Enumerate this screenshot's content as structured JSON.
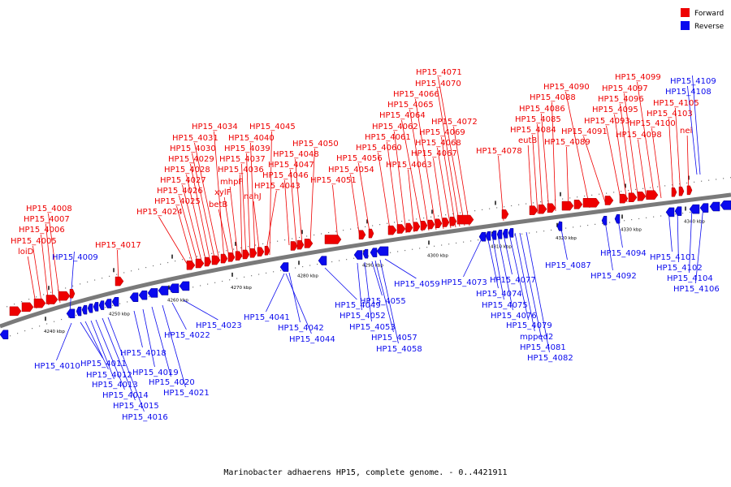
{
  "colors": {
    "forward": "#ee0000",
    "reverse": "#0a0aee",
    "backbone": "#888888",
    "text": "#000000"
  },
  "legend": [
    {
      "name": "Forward",
      "color": "#ee0000"
    },
    {
      "name": "Reverse",
      "color": "#0a0aee"
    }
  ],
  "caption": "Marinobacter adhaerens HP15, complete genome. - 0..4421911",
  "scale": {
    "ticks": [
      "4240 kbp",
      "4250 kbp",
      "4260 kbp",
      "4270 kbp",
      "4280 kbp",
      "4290 kbp",
      "4300 kbp",
      "4310 kbp",
      "4320 kbp",
      "4330 kbp",
      "4340 kbp"
    ]
  },
  "forward_labels": [
    "loiD",
    "HP15_4005",
    "HP15_4006",
    "HP15_4007",
    "HP15_4008",
    "HP15_4017",
    "HP15_4024",
    "HP15_4025",
    "HP15_4026",
    "HP15_4027",
    "HP15_4028",
    "HP15_4029",
    "HP15_4030",
    "HP15_4031",
    "HP15_4034",
    "betB",
    "xylF",
    "mhpF",
    "HP15_4036",
    "HP15_4037",
    "HP15_4039",
    "HP15_4040",
    "nahJ",
    "HP15_4043",
    "HP15_4045",
    "HP15_4046",
    "HP15_4047",
    "HP15_4048",
    "HP15_4050",
    "HP15_4051",
    "HP15_4054",
    "HP15_4056",
    "HP15_4060",
    "HP15_4061",
    "HP15_4062",
    "HP15_4063",
    "HP15_4064",
    "HP15_4065",
    "HP15_4066",
    "HP15_4067",
    "HP15_4068",
    "HP15_4069",
    "HP15_4070",
    "HP15_4071",
    "HP15_4072",
    "HP15_4078",
    "eutB",
    "HP15_4084",
    "HP15_4085",
    "HP15_4086",
    "HP15_4088",
    "HP15_4089",
    "HP15_4090",
    "HP15_4091",
    "HP15_4093",
    "HP15_4095",
    "HP15_4096",
    "HP15_4097",
    "HP15_4098",
    "HP15_4099",
    "HP15_4100",
    "HP15_4103",
    "HP15_4105",
    "nei"
  ],
  "reverse_labels": [
    "HP15_4009",
    "HP15_4010",
    "HP15_4011",
    "HP15_4012",
    "HP15_4013",
    "HP15_4014",
    "HP15_4015",
    "HP15_4016",
    "HP15_4018",
    "HP15_4019",
    "HP15_4020",
    "HP15_4021",
    "HP15_4022",
    "HP15_4023",
    "HP15_4041",
    "HP15_4042",
    "HP15_4044",
    "HP15_4049",
    "HP15_4052",
    "HP15_4053",
    "HP15_4055",
    "HP15_4057",
    "HP15_4058",
    "HP15_4059",
    "HP15_4073",
    "HP15_4074",
    "HP15_4075",
    "HP15_4076",
    "HP15_4077",
    "HP15_4079",
    "mpped2",
    "HP15_4081",
    "HP15_4082",
    "HP15_4087",
    "HP15_4092",
    "HP15_4094",
    "HP15_4101",
    "HP15_4102",
    "HP15_4104",
    "HP15_4106",
    "HP15_4108",
    "HP15_4109"
  ]
}
